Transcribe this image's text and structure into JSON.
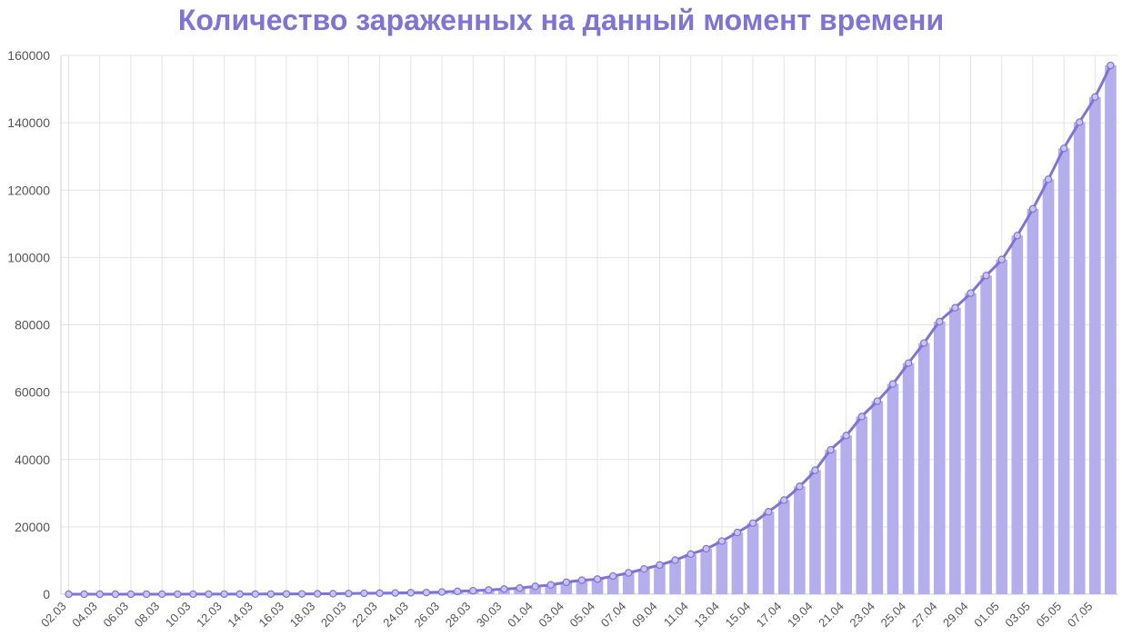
{
  "chart_data": {
    "type": "bar",
    "title": "Количество зараженных на данный момент времени",
    "xlabel": "",
    "ylabel": "",
    "ylim": [
      0,
      160000
    ],
    "yticks": [
      "0",
      "20000",
      "40000",
      "60000",
      "80000",
      "100000",
      "120000",
      "140000",
      "160000"
    ],
    "categories": [
      "02.03",
      "03.03",
      "04.03",
      "05.03",
      "06.03",
      "07.03",
      "08.03",
      "09.03",
      "10.03",
      "11.03",
      "12.03",
      "13.03",
      "14.03",
      "15.03",
      "16.03",
      "17.03",
      "18.03",
      "19.03",
      "20.03",
      "21.03",
      "22.03",
      "23.03",
      "24.03",
      "25.03",
      "26.03",
      "27.03",
      "28.03",
      "29.03",
      "30.03",
      "31.03",
      "01.04",
      "02.04",
      "03.04",
      "04.04",
      "05.04",
      "06.04",
      "07.04",
      "08.04",
      "09.04",
      "10.04",
      "11.04",
      "12.04",
      "13.04",
      "14.04",
      "15.04",
      "16.04",
      "17.04",
      "18.04",
      "19.04",
      "20.04",
      "21.04",
      "22.04",
      "23.04",
      "24.04",
      "25.04",
      "26.04",
      "27.04",
      "28.04",
      "29.04",
      "30.04",
      "01.05",
      "02.05",
      "03.05",
      "04.05",
      "05.05",
      "06.05",
      "07.05",
      "08.05"
    ],
    "xtick_labels": [
      "02.03",
      "04.03",
      "06.03",
      "08.03",
      "10.03",
      "12.03",
      "14.03",
      "16.03",
      "18.03",
      "20.03",
      "22.03",
      "24.03",
      "26.03",
      "28.03",
      "30.03",
      "01.04",
      "03.04",
      "05.04",
      "07.04",
      "09.04",
      "11.04",
      "13.04",
      "15.04",
      "17.04",
      "19.04",
      "21.04",
      "23.04",
      "25.04",
      "27.04",
      "29.04",
      "01.05",
      "03.05",
      "05.05",
      "07.05"
    ],
    "series": [
      {
        "type": "bar",
        "color": "#b4aeed",
        "values": [
          3,
          3,
          3,
          3,
          4,
          10,
          13,
          17,
          20,
          28,
          28,
          34,
          45,
          59,
          63,
          90,
          114,
          147,
          199,
          253,
          306,
          367,
          438,
          495,
          658,
          840,
          1036,
          1264,
          1534,
          1836,
          2337,
          2777,
          3548,
          4149,
          4484,
          5389,
          6343,
          7497,
          8672,
          10131,
          11917,
          13504,
          15770,
          18328,
          21102,
          24490,
          27938,
          32008,
          36793,
          42853,
          47121,
          52763,
          57327,
          62439,
          68622,
          74588,
          80949,
          85069,
          89406,
          94624,
          99399,
          106498,
          114431,
          123215,
          132398,
          140174,
          147661,
          157024
        ]
      },
      {
        "type": "line",
        "color": "#7f73d8",
        "values": [
          3,
          3,
          3,
          3,
          4,
          10,
          13,
          17,
          20,
          28,
          28,
          34,
          45,
          59,
          63,
          90,
          114,
          147,
          199,
          253,
          306,
          367,
          438,
          495,
          658,
          840,
          1036,
          1264,
          1534,
          1836,
          2337,
          2777,
          3548,
          4149,
          4484,
          5389,
          6343,
          7497,
          8672,
          10131,
          11917,
          13504,
          15770,
          18328,
          21102,
          24490,
          27938,
          32008,
          36793,
          42853,
          47121,
          52763,
          57327,
          62439,
          68622,
          74588,
          80949,
          85069,
          89406,
          94624,
          99399,
          106498,
          114431,
          123215,
          132398,
          140174,
          147661,
          157024
        ]
      }
    ],
    "grid": true,
    "legend": "none"
  }
}
